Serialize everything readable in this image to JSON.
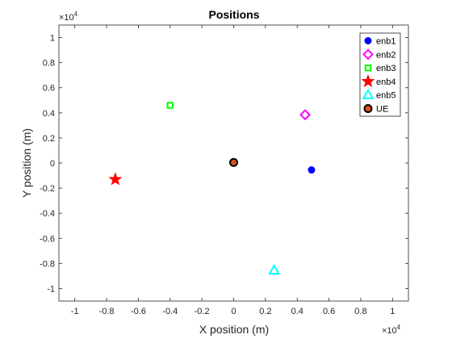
{
  "chart_data": {
    "type": "scatter",
    "title": "Positions",
    "xlabel": "X position (m)",
    "ylabel": "Y position (m)",
    "x_exponent_label": "×10",
    "x_exponent_power": "4",
    "y_exponent_label": "×10",
    "y_exponent_power": "4",
    "xlim": [
      -1.1,
      1.1
    ],
    "ylim": [
      -1.1,
      1.1
    ],
    "xticks": [
      -1,
      -0.8,
      -0.6,
      -0.4,
      -0.2,
      0,
      0.2,
      0.4,
      0.6,
      0.8,
      1
    ],
    "yticks": [
      -1,
      -0.8,
      -0.6,
      -0.4,
      -0.2,
      0,
      0.2,
      0.4,
      0.6,
      0.8,
      1
    ],
    "xtick_labels": [
      "-1",
      "-0.8",
      "-0.6",
      "-0.4",
      "-0.2",
      "0",
      "0.2",
      "0.4",
      "0.6",
      "0.8",
      "1"
    ],
    "ytick_labels": [
      "-1",
      "-0.8",
      "-0.6",
      "-0.4",
      "-0.2",
      "0",
      "0.2",
      "0.4",
      "0.6",
      "0.8",
      "1"
    ],
    "grid": false,
    "legend_position": "top-right",
    "series": [
      {
        "name": "enb1",
        "x": [
          0.49
        ],
        "y": [
          -0.055
        ],
        "marker": "circle",
        "color": "#0000ff",
        "filled": true
      },
      {
        "name": "enb2",
        "x": [
          0.45
        ],
        "y": [
          0.385
        ],
        "marker": "diamond",
        "color": "#ff00ff",
        "filled": false
      },
      {
        "name": "enb3",
        "x": [
          -0.4
        ],
        "y": [
          0.46
        ],
        "marker": "square",
        "color": "#00ff00",
        "filled": false
      },
      {
        "name": "enb4",
        "x": [
          -0.745
        ],
        "y": [
          -0.13
        ],
        "marker": "star",
        "color": "#ff0000",
        "filled": true
      },
      {
        "name": "enb5",
        "x": [
          0.255
        ],
        "y": [
          -0.855
        ],
        "marker": "triangle",
        "color": "#00ffff",
        "filled": false
      },
      {
        "name": "UE",
        "x": [
          0.0
        ],
        "y": [
          0.005
        ],
        "marker": "circle-edge",
        "color": "#d95319",
        "edge": "#000000",
        "filled": true
      }
    ]
  }
}
